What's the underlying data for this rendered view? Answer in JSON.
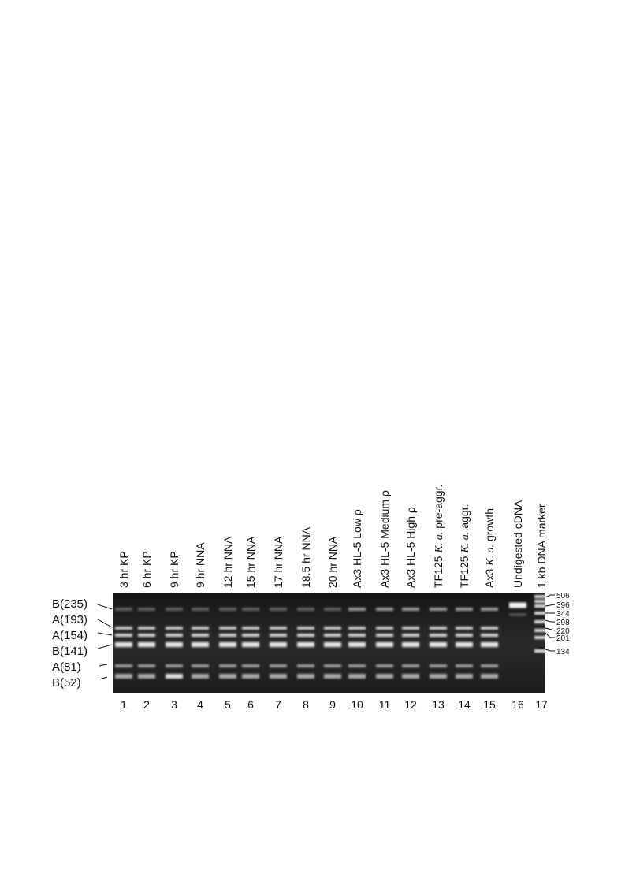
{
  "figure": {
    "lanes": [
      {
        "number": "1",
        "label": [
          "3 hr KP"
        ]
      },
      {
        "number": "2",
        "label": [
          "6 hr KP"
        ]
      },
      {
        "number": "3",
        "label": [
          "9 hr KP"
        ]
      },
      {
        "number": "4",
        "label": [
          "9 hr NNA"
        ]
      },
      {
        "number": "5",
        "label": [
          "12 hr NNA"
        ]
      },
      {
        "number": "6",
        "label": [
          "15 hr NNA"
        ]
      },
      {
        "number": "7",
        "label": [
          "17 hr NNA"
        ]
      },
      {
        "number": "8",
        "label": [
          "18.5 hr NNA"
        ]
      },
      {
        "number": "9",
        "label": [
          "20 hr NNA"
        ]
      },
      {
        "number": "10",
        "label": [
          "Ax3 HL-5 Low ρ"
        ]
      },
      {
        "number": "11",
        "label": [
          "Ax3 HL-5 Medium ρ"
        ]
      },
      {
        "number": "12",
        "label": [
          "Ax3 HL-5 High ρ"
        ]
      },
      {
        "number": "13",
        "label": [
          "TF125",
          "K. a.",
          "pre-aggr."
        ]
      },
      {
        "number": "14",
        "label": [
          "TF125",
          "K. a.",
          "aggr."
        ]
      },
      {
        "number": "15",
        "label": [
          "Ax3",
          "K. a.",
          "growth"
        ]
      },
      {
        "number": "16",
        "label": [
          "Undigested cDNA"
        ]
      },
      {
        "number": "17",
        "label": [
          "1 kb DNA marker"
        ]
      }
    ],
    "band_labels": [
      "B(235)",
      "A(193)",
      "A(154)",
      "B(141)",
      "A(81)",
      "B(52)"
    ],
    "marker_sizes": [
      "506",
      "396",
      "344",
      "298",
      "220",
      "201",
      "134"
    ]
  }
}
